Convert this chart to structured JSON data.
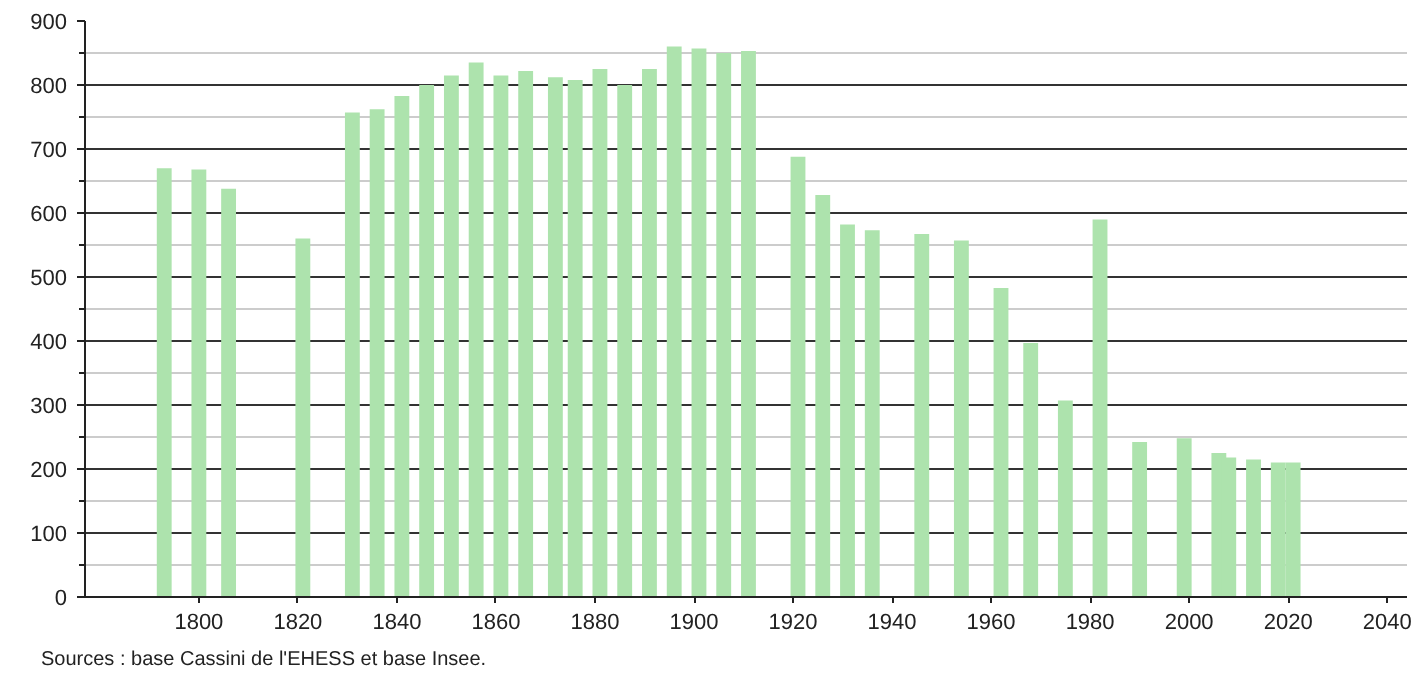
{
  "chart_data": {
    "type": "bar",
    "color": "#ade3ad",
    "x": [
      1793,
      1800,
      1806,
      1821,
      1831,
      1836,
      1841,
      1846,
      1851,
      1856,
      1861,
      1866,
      1872,
      1876,
      1881,
      1886,
      1891,
      1896,
      1901,
      1906,
      1911,
      1921,
      1926,
      1931,
      1936,
      1946,
      1954,
      1962,
      1968,
      1975,
      1982,
      1990,
      1999,
      2006,
      2008,
      2013,
      2018,
      2021
    ],
    "values": [
      670,
      668,
      638,
      560,
      757,
      762,
      783,
      800,
      815,
      835,
      815,
      822,
      812,
      808,
      825,
      800,
      825,
      860,
      857,
      850,
      853,
      688,
      628,
      582,
      573,
      567,
      557,
      483,
      397,
      307,
      590,
      242,
      248,
      225,
      218,
      215,
      210,
      210
    ],
    "xlim": [
      1777,
      2044
    ],
    "xticks": [
      1800,
      1820,
      1840,
      1860,
      1880,
      1900,
      1920,
      1940,
      1960,
      1980,
      2000,
      2020,
      2040
    ],
    "ylim": [
      0,
      900
    ],
    "yticks": [
      0,
      {
        "value": 50,
        "label": null
      },
      100,
      {
        "value": 150,
        "label": null
      },
      200,
      {
        "value": 250,
        "label": null
      },
      300,
      {
        "value": 350,
        "label": null
      },
      400,
      {
        "value": 450,
        "label": null
      },
      500,
      {
        "value": 550,
        "label": null
      },
      600,
      {
        "value": 650,
        "label": null
      },
      700,
      {
        "value": 750,
        "label": null
      },
      800,
      {
        "value": 850,
        "label": null
      },
      900
    ],
    "grid": "y",
    "annotations": [
      "Sources : base Cassini de l'EHESS et base Insee."
    ]
  }
}
